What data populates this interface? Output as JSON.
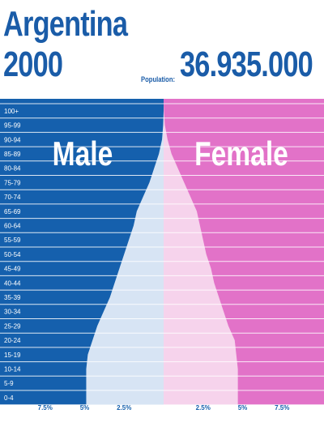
{
  "header": {
    "country": "Argentina",
    "year": "2000",
    "population_label": "Population:",
    "population_value": "36.935.000"
  },
  "colors": {
    "male_bg": "#1560ad",
    "female_bg": "#e272c8",
    "male_bar": "#d7e4f4",
    "female_bar": "#f6d3ec",
    "title": "#1a5ca8"
  },
  "chart_data": {
    "type": "bar",
    "orientation": "horizontal",
    "categories": [
      "100+",
      "95-99",
      "90-94",
      "85-89",
      "80-84",
      "75-79",
      "70-74",
      "65-69",
      "60-64",
      "55-59",
      "50-54",
      "45-49",
      "40-44",
      "35-39",
      "30-34",
      "25-29",
      "20-24",
      "15-19",
      "10-14",
      "5-9",
      "0-4"
    ],
    "series": [
      {
        "name": "Male",
        "values": [
          0.0,
          0.03,
          0.1,
          0.3,
          0.6,
          0.9,
          1.3,
          1.7,
          1.9,
          2.2,
          2.5,
          2.8,
          3.1,
          3.4,
          3.8,
          4.2,
          4.5,
          4.8,
          4.9,
          4.9,
          4.9
        ]
      },
      {
        "name": "Female",
        "values": [
          0.02,
          0.08,
          0.25,
          0.5,
          0.9,
          1.3,
          1.7,
          2.1,
          2.3,
          2.5,
          2.7,
          3.0,
          3.2,
          3.5,
          3.8,
          4.1,
          4.5,
          4.6,
          4.7,
          4.7,
          4.7
        ]
      }
    ],
    "x_ticks_left": [
      "7.5%",
      "5%",
      "2.5%"
    ],
    "x_ticks_right": [
      "2.5%",
      "5%",
      "7.5%"
    ],
    "xlim": [
      0,
      10
    ]
  }
}
